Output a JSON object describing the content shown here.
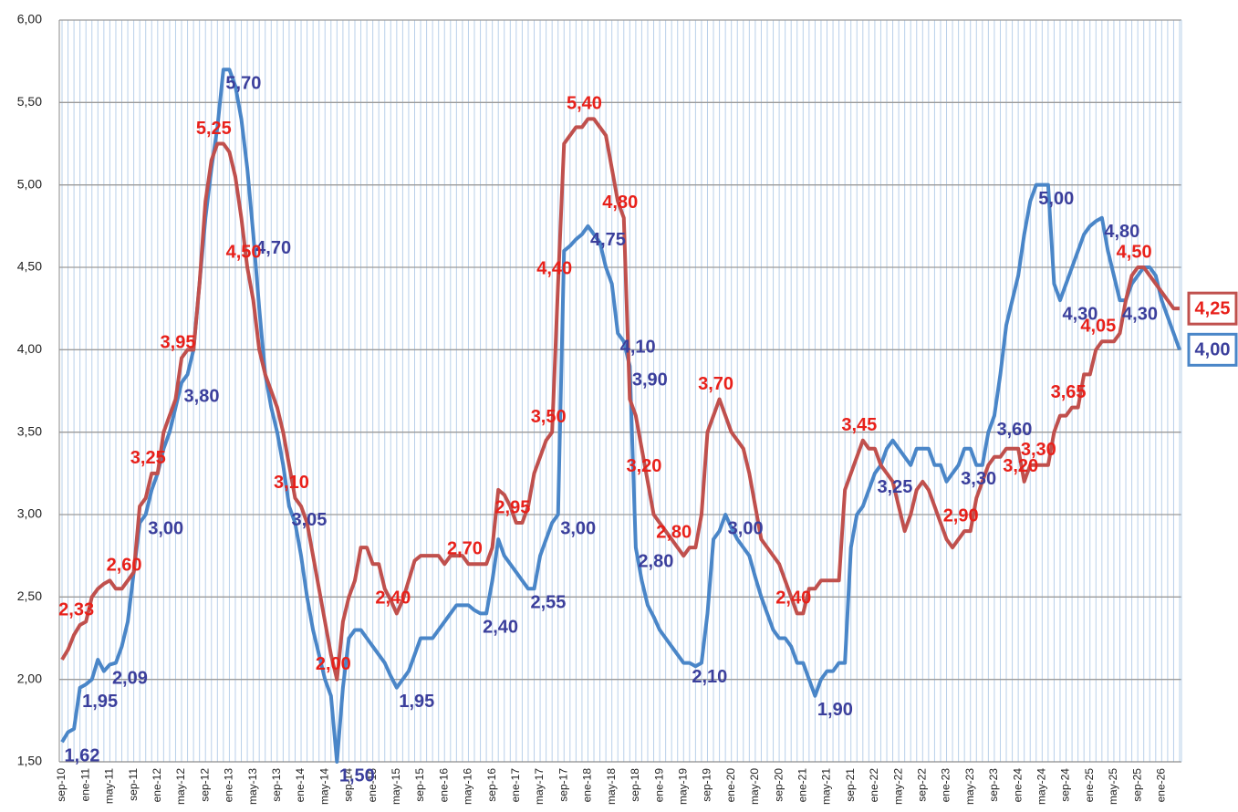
{
  "chart_data": {
    "type": "line",
    "categories": [
      "sep-10",
      null,
      null,
      null,
      "ene-11",
      null,
      null,
      null,
      "may-11",
      null,
      null,
      null,
      "sep-11",
      null,
      null,
      null,
      "ene-12",
      null,
      null,
      null,
      "may-12",
      null,
      null,
      null,
      "sep-12",
      null,
      null,
      null,
      "ene-13",
      null,
      null,
      null,
      "may-13",
      null,
      null,
      null,
      "sep-13",
      null,
      null,
      null,
      "ene-14",
      null,
      null,
      null,
      "may-14",
      null,
      null,
      null,
      "sep-14",
      null,
      null,
      null,
      "ene-15",
      null,
      null,
      null,
      "may-15",
      null,
      null,
      null,
      "sep-15",
      null,
      null,
      null,
      "ene-16",
      null,
      null,
      null,
      "may-16",
      null,
      null,
      null,
      "sep-16",
      null,
      null,
      null,
      "ene-17",
      null,
      null,
      null,
      "may-17",
      null,
      null,
      null,
      "sep-17",
      null,
      null,
      null,
      "ene-18",
      null,
      null,
      null,
      "may-18",
      null,
      null,
      null,
      "sep-18",
      null,
      null,
      null,
      "ene-19",
      null,
      null,
      null,
      "may-19",
      null,
      null,
      null,
      "sep-19",
      null,
      null,
      null,
      "ene-20",
      null,
      null,
      null,
      "may-20",
      null,
      null,
      null,
      "sep-20",
      null,
      null,
      null,
      "ene-21",
      null,
      null,
      null,
      "may-21",
      null,
      null,
      null,
      "sep-21",
      null,
      null,
      null,
      "ene-22",
      null,
      null,
      null,
      "may-22",
      null,
      null,
      null,
      "sep-22",
      null,
      null,
      null,
      "ene-23",
      null,
      null,
      null,
      "may-23",
      null,
      null,
      null,
      "sep-23",
      null,
      null,
      null,
      "ene-24",
      null,
      null,
      null,
      "may-24",
      null,
      null,
      null,
      "sep-24",
      null,
      null,
      null,
      "ene-25",
      null,
      null,
      null,
      "may-25",
      null,
      null,
      null,
      "sep-25",
      null,
      null,
      null,
      "ene-26",
      null,
      null,
      null
    ],
    "series": [
      {
        "color": "#4a86c8",
        "label_color": "#3b3f9c",
        "values": [
          1.62,
          1.68,
          1.7,
          1.95,
          1.97,
          2.0,
          2.12,
          2.05,
          2.09,
          2.1,
          2.2,
          2.35,
          2.65,
          2.95,
          3.0,
          3.15,
          3.25,
          3.4,
          3.5,
          3.65,
          3.8,
          3.85,
          4.0,
          4.4,
          4.8,
          5.1,
          5.35,
          5.7,
          5.7,
          5.6,
          5.4,
          5.1,
          4.7,
          4.25,
          3.85,
          3.65,
          3.5,
          3.3,
          3.05,
          2.95,
          2.75,
          2.5,
          2.3,
          2.15,
          2.0,
          1.9,
          1.5,
          1.95,
          2.25,
          2.3,
          2.3,
          2.25,
          2.2,
          2.15,
          2.1,
          2.02,
          1.95,
          2.0,
          2.05,
          2.15,
          2.25,
          2.25,
          2.25,
          2.3,
          2.35,
          2.4,
          2.45,
          2.45,
          2.45,
          2.42,
          2.4,
          2.4,
          2.6,
          2.85,
          2.75,
          2.7,
          2.65,
          2.6,
          2.55,
          2.55,
          2.75,
          2.85,
          2.95,
          3.0,
          4.6,
          4.63,
          4.67,
          4.7,
          4.75,
          4.7,
          4.65,
          4.5,
          4.4,
          4.1,
          4.05,
          3.9,
          2.8,
          2.6,
          2.45,
          2.38,
          2.3,
          2.25,
          2.2,
          2.15,
          2.1,
          2.1,
          2.08,
          2.1,
          2.4,
          2.85,
          2.9,
          3.0,
          2.92,
          2.85,
          2.8,
          2.75,
          2.62,
          2.5,
          2.4,
          2.3,
          2.25,
          2.25,
          2.2,
          2.1,
          2.1,
          2.0,
          1.9,
          2.0,
          2.05,
          2.05,
          2.1,
          2.1,
          2.8,
          3.0,
          3.05,
          3.15,
          3.25,
          3.3,
          3.4,
          3.45,
          3.4,
          3.35,
          3.3,
          3.4,
          3.4,
          3.4,
          3.3,
          3.3,
          3.2,
          3.25,
          3.3,
          3.4,
          3.4,
          3.3,
          3.3,
          3.5,
          3.6,
          3.85,
          4.15,
          4.3,
          4.45,
          4.7,
          4.9,
          5.0,
          5.0,
          5.0,
          4.4,
          4.3,
          4.4,
          4.5,
          4.6,
          4.7,
          4.75,
          4.78,
          4.8,
          4.6,
          4.45,
          4.3,
          4.3,
          4.4,
          4.45,
          4.5,
          4.5,
          4.45,
          4.3,
          4.2,
          4.1,
          4.0
        ],
        "value_labels": [
          "1,62",
          null,
          null,
          "1,95",
          null,
          null,
          null,
          null,
          "2,09",
          null,
          null,
          null,
          null,
          null,
          "3,00",
          null,
          null,
          null,
          null,
          null,
          "3,80",
          null,
          null,
          null,
          null,
          null,
          null,
          "5,70",
          null,
          null,
          null,
          null,
          "4,70",
          null,
          null,
          null,
          null,
          null,
          "3,05",
          null,
          null,
          null,
          null,
          null,
          null,
          null,
          "1,50",
          null,
          null,
          null,
          null,
          null,
          null,
          null,
          null,
          null,
          "1,95",
          null,
          null,
          null,
          null,
          null,
          null,
          null,
          null,
          null,
          null,
          null,
          null,
          null,
          "2,40",
          null,
          null,
          null,
          null,
          null,
          null,
          null,
          "2,55",
          null,
          null,
          null,
          null,
          "3,00",
          null,
          null,
          null,
          null,
          "4,75",
          null,
          null,
          null,
          null,
          "4,10",
          null,
          "3,90",
          "2,80",
          null,
          null,
          null,
          null,
          null,
          null,
          null,
          null,
          "2,10",
          null,
          null,
          null,
          null,
          null,
          "3,00",
          null,
          null,
          null,
          null,
          null,
          null,
          null,
          null,
          null,
          null,
          null,
          null,
          null,
          null,
          "1,90",
          null,
          null,
          null,
          null,
          null,
          null,
          null,
          null,
          null,
          "3,25",
          null,
          null,
          null,
          null,
          null,
          null,
          null,
          null,
          null,
          null,
          null,
          null,
          null,
          "3,30",
          null,
          null,
          null,
          null,
          null,
          "3,60",
          null,
          null,
          null,
          null,
          null,
          null,
          "5,00",
          null,
          null,
          null,
          "4,30",
          null,
          null,
          null,
          null,
          null,
          null,
          "4,80",
          null,
          null,
          "4,30",
          null,
          null,
          null,
          null,
          null,
          null,
          null,
          null,
          null,
          "4,00"
        ]
      },
      {
        "color": "#c0504d",
        "label_color": "#e8201a",
        "values": [
          2.12,
          2.18,
          2.27,
          2.33,
          2.35,
          2.5,
          2.55,
          2.58,
          2.6,
          2.55,
          2.55,
          2.6,
          2.65,
          3.05,
          3.1,
          3.25,
          3.25,
          3.5,
          3.6,
          3.7,
          3.95,
          4.0,
          4.0,
          4.4,
          4.9,
          5.15,
          5.25,
          5.25,
          5.2,
          5.05,
          4.8,
          4.5,
          4.3,
          4.0,
          3.85,
          3.75,
          3.65,
          3.5,
          3.3,
          3.1,
          3.05,
          2.95,
          2.75,
          2.55,
          2.35,
          2.15,
          2.0,
          2.35,
          2.5,
          2.6,
          2.8,
          2.8,
          2.7,
          2.7,
          2.55,
          2.48,
          2.4,
          2.48,
          2.6,
          2.72,
          2.75,
          2.75,
          2.75,
          2.75,
          2.7,
          2.75,
          2.75,
          2.75,
          2.7,
          2.7,
          2.7,
          2.7,
          2.8,
          3.15,
          3.12,
          3.05,
          2.95,
          2.95,
          3.05,
          3.25,
          3.35,
          3.45,
          3.5,
          4.4,
          5.25,
          5.3,
          5.35,
          5.35,
          5.4,
          5.4,
          5.35,
          5.3,
          5.1,
          4.9,
          4.8,
          3.7,
          3.6,
          3.4,
          3.2,
          3.0,
          2.95,
          2.9,
          2.85,
          2.8,
          2.75,
          2.8,
          2.8,
          3.0,
          3.5,
          3.6,
          3.7,
          3.6,
          3.5,
          3.45,
          3.4,
          3.25,
          3.05,
          2.85,
          2.8,
          2.75,
          2.7,
          2.6,
          2.5,
          2.4,
          2.4,
          2.55,
          2.55,
          2.6,
          2.6,
          2.6,
          2.6,
          3.15,
          3.25,
          3.35,
          3.45,
          3.4,
          3.4,
          3.3,
          3.25,
          3.2,
          3.05,
          2.9,
          3.0,
          3.15,
          3.2,
          3.15,
          3.05,
          2.95,
          2.85,
          2.8,
          2.85,
          2.9,
          2.9,
          3.1,
          3.2,
          3.3,
          3.35,
          3.35,
          3.4,
          3.4,
          3.4,
          3.2,
          3.3,
          3.3,
          3.3,
          3.3,
          3.5,
          3.6,
          3.6,
          3.65,
          3.65,
          3.85,
          3.85,
          4.0,
          4.05,
          4.05,
          4.05,
          4.1,
          4.3,
          4.45,
          4.5,
          4.5,
          4.45,
          4.4,
          4.35,
          4.3,
          4.25,
          4.25
        ],
        "value_labels": [
          null,
          null,
          null,
          "2,33",
          null,
          null,
          null,
          null,
          null,
          null,
          null,
          "2,60",
          null,
          null,
          null,
          "3,25",
          null,
          null,
          null,
          null,
          "3,95",
          null,
          null,
          null,
          null,
          null,
          "5,25",
          null,
          null,
          null,
          null,
          "4,50",
          null,
          null,
          null,
          null,
          null,
          null,
          null,
          "3,10",
          null,
          null,
          null,
          null,
          null,
          null,
          "2,00",
          null,
          null,
          null,
          null,
          null,
          null,
          null,
          null,
          null,
          "2,40",
          null,
          null,
          null,
          null,
          null,
          null,
          null,
          null,
          null,
          null,
          null,
          "2,70",
          null,
          null,
          null,
          null,
          null,
          null,
          null,
          "2,95",
          null,
          null,
          null,
          null,
          null,
          "3,50",
          "4,40",
          null,
          null,
          null,
          null,
          "5,40",
          null,
          null,
          null,
          null,
          null,
          "4,80",
          null,
          null,
          null,
          "3,20",
          null,
          null,
          null,
          null,
          "2,80",
          null,
          null,
          null,
          null,
          null,
          null,
          "3,70",
          null,
          null,
          null,
          null,
          null,
          null,
          null,
          null,
          null,
          null,
          null,
          null,
          "2,40",
          null,
          null,
          null,
          null,
          null,
          null,
          null,
          null,
          null,
          null,
          "3,45",
          null,
          null,
          null,
          null,
          null,
          null,
          null,
          null,
          null,
          null,
          null,
          null,
          null,
          null,
          null,
          null,
          "2,90",
          null,
          null,
          null,
          null,
          null,
          null,
          null,
          null,
          null,
          "3,20",
          null,
          null,
          "3,30",
          null,
          null,
          null,
          null,
          "3,65",
          null,
          null,
          null,
          null,
          "4,05",
          null,
          null,
          null,
          null,
          null,
          "4,50",
          null,
          null,
          null,
          null,
          null,
          null,
          "4,25"
        ]
      }
    ],
    "ylim": [
      1.5,
      6
    ],
    "yticks": [
      {
        "value": 1.5,
        "label": "1,50"
      },
      {
        "value": 2,
        "label": "2,00"
      },
      {
        "value": 2.5,
        "label": "2,50"
      },
      {
        "value": 3,
        "label": "3,00"
      },
      {
        "value": 3.5,
        "label": "3,50"
      },
      {
        "value": 4,
        "label": "4,00"
      },
      {
        "value": 4.5,
        "label": "4,50"
      },
      {
        "value": 5,
        "label": "5,00"
      },
      {
        "value": 5.5,
        "label": "5,50"
      },
      {
        "value": 6,
        "label": "6,00"
      }
    ],
    "grid": true
  }
}
